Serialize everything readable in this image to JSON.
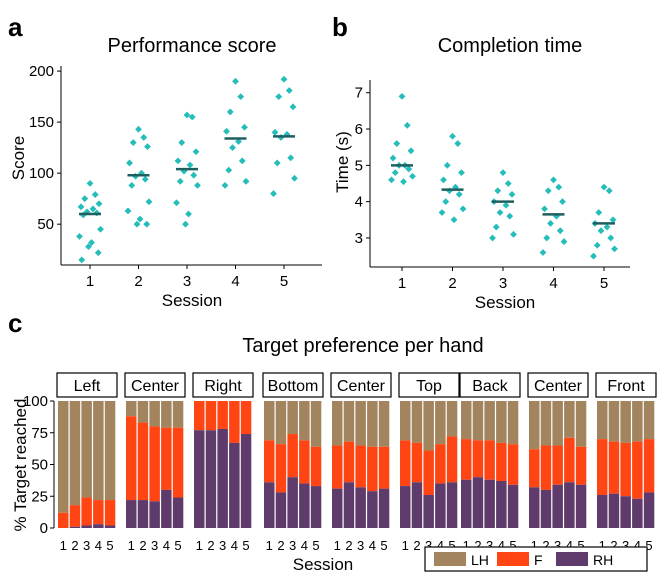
{
  "panel_letters": [
    "a",
    "b",
    "c"
  ],
  "colors": {
    "dot": "#24bdb9",
    "median": "#1f5f60",
    "LH": "#a2855e",
    "F": "#ff4514",
    "RH": "#5e3b6b"
  },
  "chart_data": [
    {
      "type": "scatter",
      "title": "Performance score",
      "xlabel": "Session",
      "ylabel": "Score",
      "categories": [
        "1",
        "2",
        "3",
        "4",
        "5"
      ],
      "yticks": [
        50,
        100,
        150,
        200
      ],
      "ylim": [
        10,
        205
      ],
      "points": [
        [
          90,
          79,
          75,
          70,
          67,
          65,
          62,
          61,
          59,
          45,
          38,
          32,
          28,
          22,
          15
        ],
        [
          143,
          135,
          130,
          126,
          110,
          100,
          97,
          94,
          88,
          72,
          63,
          55,
          50,
          50
        ],
        [
          157,
          155,
          130,
          121,
          112,
          108,
          102,
          98,
          92,
          88,
          71,
          60,
          50
        ],
        [
          190,
          175,
          160,
          145,
          141,
          131,
          125,
          112,
          103,
          92,
          88
        ],
        [
          192,
          181,
          175,
          165,
          140,
          138,
          135,
          115,
          110,
          95,
          80
        ]
      ],
      "medians": [
        60,
        98,
        104,
        134,
        136
      ]
    },
    {
      "type": "scatter",
      "title": "Completion time",
      "xlabel": "Session",
      "ylabel": "Time (s)",
      "categories": [
        "1",
        "2",
        "3",
        "4",
        "5"
      ],
      "yticks": [
        3,
        4,
        5,
        6,
        7
      ],
      "ylim": [
        2.2,
        7.35
      ],
      "points": [
        [
          6.9,
          6.1,
          5.6,
          5.4,
          5.2,
          5.0,
          5.0,
          4.9,
          4.8,
          4.7,
          4.6,
          4.55
        ],
        [
          5.8,
          5.6,
          5.0,
          4.8,
          4.6,
          4.4,
          4.3,
          4.2,
          4.0,
          3.8,
          3.7,
          3.5
        ],
        [
          4.8,
          4.5,
          4.3,
          4.2,
          4.0,
          3.9,
          3.7,
          3.6,
          3.3,
          3.1,
          3.0
        ],
        [
          4.6,
          4.4,
          4.3,
          4.0,
          3.8,
          3.6,
          3.4,
          3.2,
          3.0,
          2.9,
          2.6
        ],
        [
          4.4,
          4.3,
          3.7,
          3.5,
          3.4,
          3.3,
          3.2,
          3.0,
          2.8,
          2.7,
          2.5
        ]
      ],
      "medians": [
        5.0,
        4.33,
        4.0,
        3.65,
        3.4
      ]
    },
    {
      "type": "bar",
      "stacked": true,
      "title": "Target preference per hand",
      "xlabel": "Session",
      "ylabel": "% Target reached",
      "yticks": [
        0,
        25,
        50,
        75,
        100
      ],
      "ylim": [
        0,
        100
      ],
      "series_names": [
        "LH",
        "F",
        "RH"
      ],
      "legend_position": "bottom-right",
      "sessions": [
        "1",
        "2",
        "3",
        "4",
        "5"
      ],
      "groups": [
        {
          "panels": [
            {
              "label": "Left",
              "RH": [
                0,
                1,
                2,
                3,
                2
              ],
              "F": [
                12,
                17,
                22,
                19,
                20
              ]
            },
            {
              "label": "Center",
              "RH": [
                22,
                22,
                21,
                30,
                24
              ],
              "F": [
                66,
                61,
                59,
                49,
                55
              ]
            },
            {
              "label": "Right",
              "RH": [
                77,
                77,
                78,
                67,
                74
              ],
              "F": [
                23,
                23,
                22,
                33,
                26
              ]
            }
          ]
        },
        {
          "panels": [
            {
              "label": "Bottom",
              "RH": [
                36,
                28,
                40,
                35,
                33
              ],
              "F": [
                33,
                38,
                34,
                34,
                31
              ]
            },
            {
              "label": "Center",
              "RH": [
                31,
                36,
                32,
                29,
                31
              ],
              "F": [
                34,
                32,
                33,
                35,
                33
              ]
            },
            {
              "label": "Top",
              "RH": [
                33,
                36,
                26,
                35,
                36
              ],
              "F": [
                36,
                31,
                35,
                31,
                36
              ]
            }
          ]
        },
        {
          "panels": [
            {
              "label": "Back",
              "RH": [
                38,
                40,
                38,
                37,
                34
              ],
              "F": [
                32,
                29,
                31,
                30,
                32
              ]
            },
            {
              "label": "Center",
              "RH": [
                32,
                30,
                34,
                36,
                34
              ],
              "F": [
                30,
                35,
                31,
                35,
                30
              ]
            },
            {
              "label": "Front",
              "RH": [
                26,
                27,
                25,
                23,
                28
              ],
              "F": [
                44,
                41,
                42,
                45,
                42
              ]
            }
          ]
        }
      ]
    }
  ]
}
